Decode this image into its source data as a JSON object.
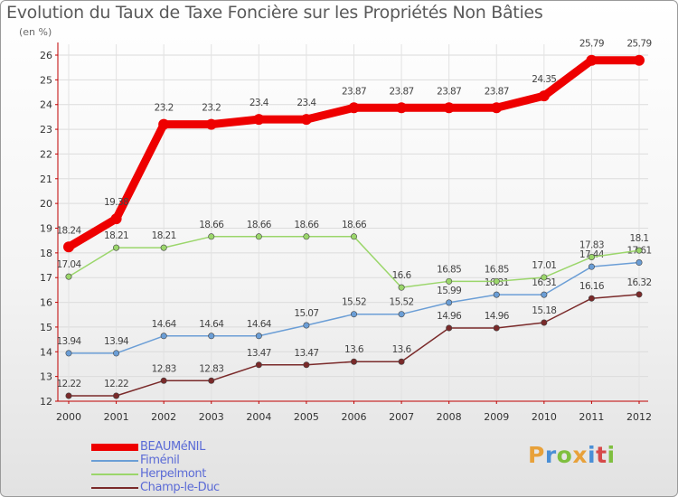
{
  "title": "Evolution du Taux de Taxe Foncière sur les Propriétés Non Bâties",
  "subtitle": "(en %)",
  "logo": {
    "letters": [
      "P",
      "r",
      "o",
      "x",
      "i",
      "t",
      "i"
    ],
    "colors": [
      "#e8a13a",
      "#4a8fd6",
      "#7fbf3f",
      "#e8a13a",
      "#4a8fd6",
      "#d64a4a",
      "#7fbf3f"
    ]
  },
  "chart_data": {
    "type": "line",
    "x": [
      "2000",
      "2001",
      "2002",
      "2003",
      "2004",
      "2005",
      "2006",
      "2007",
      "2008",
      "2009",
      "2010",
      "2011",
      "2012"
    ],
    "ylim": [
      12,
      26
    ],
    "yticks": [
      "12",
      "13",
      "14",
      "15",
      "16",
      "17",
      "18",
      "19",
      "20",
      "21",
      "22",
      "23",
      "24",
      "25",
      "26"
    ],
    "series": [
      {
        "name": "BEAUMéNIL",
        "color": "#ee0000",
        "emphasis": true,
        "values": [
          18.24,
          19.38,
          23.2,
          23.2,
          23.4,
          23.4,
          23.87,
          23.87,
          23.87,
          23.87,
          24.35,
          25.79,
          25.79
        ],
        "labels": [
          "18.24",
          "19.38",
          "23.2",
          "23.2",
          "23.4",
          "23.4",
          "23.87",
          "23.87",
          "23.87",
          "23.87",
          "24.35",
          "25.79",
          "25.79"
        ]
      },
      {
        "name": "Fiménil",
        "color": "#6b9ed6",
        "emphasis": false,
        "values": [
          13.94,
          13.94,
          14.64,
          14.64,
          14.64,
          15.07,
          15.52,
          15.52,
          15.99,
          16.31,
          16.31,
          17.44,
          17.61
        ],
        "labels": [
          "13.94",
          "13.94",
          "14.64",
          "14.64",
          "14.64",
          "15.07",
          "15.52",
          "15.52",
          "15.99",
          "16.31",
          "16.31",
          "17.44",
          "17.61"
        ]
      },
      {
        "name": "Herpelmont",
        "color": "#9bd66b",
        "emphasis": false,
        "values": [
          17.04,
          18.21,
          18.21,
          18.66,
          18.66,
          18.66,
          18.66,
          16.6,
          16.85,
          16.85,
          17.01,
          17.83,
          18.1
        ],
        "labels": [
          "17.04",
          "18.21",
          "18.21",
          "18.66",
          "18.66",
          "18.66",
          "18.66",
          "16.6",
          "16.85",
          "16.85",
          "17.01",
          "17.83",
          "18.1"
        ]
      },
      {
        "name": "Champ-le-Duc",
        "color": "#7a2a2a",
        "emphasis": false,
        "values": [
          12.22,
          12.22,
          12.83,
          12.83,
          13.47,
          13.47,
          13.6,
          13.6,
          14.96,
          14.96,
          15.18,
          16.16,
          16.32
        ],
        "labels": [
          "12.22",
          "12.22",
          "12.83",
          "12.83",
          "13.47",
          "13.47",
          "13.6",
          "13.6",
          "14.96",
          "14.96",
          "15.18",
          "16.16",
          "16.32"
        ]
      }
    ]
  }
}
